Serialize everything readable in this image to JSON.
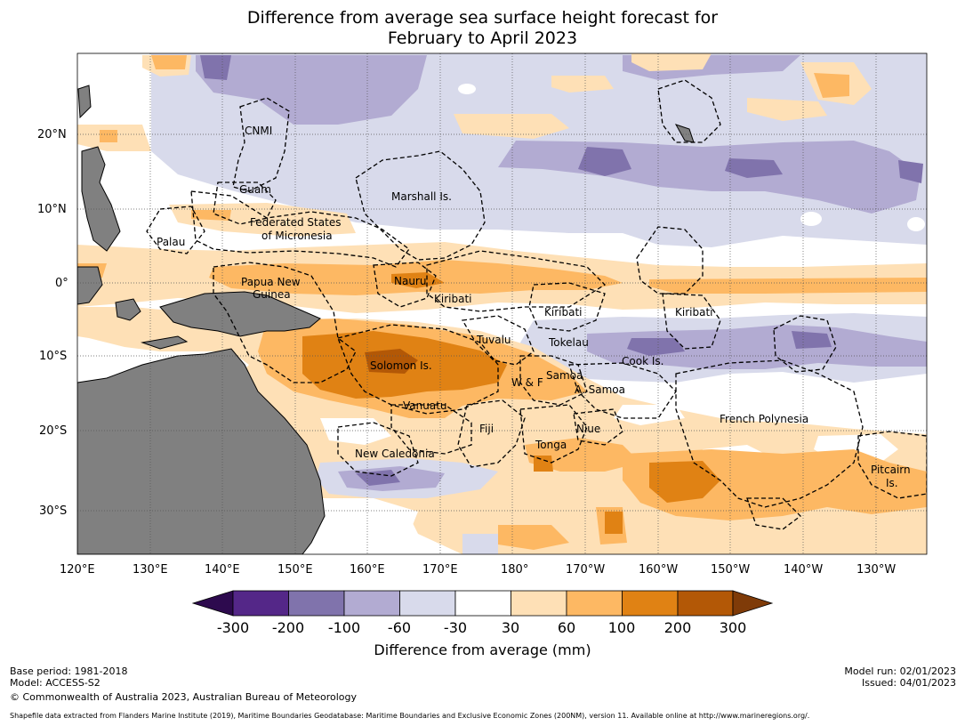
{
  "title": {
    "line1": "Difference from average sea surface height forecast for",
    "line2": "February to April 2023"
  },
  "map": {
    "latitude_labels": [
      "20°N",
      "10°N",
      "0°",
      "10°S",
      "20°S",
      "30°S"
    ],
    "longitude_labels": [
      "120°E",
      "130°E",
      "140°E",
      "150°E",
      "160°E",
      "170°E",
      "180°",
      "170°W",
      "160°W",
      "150°W",
      "140°W",
      "130°W"
    ],
    "regions": {
      "cnmi": "CNMI",
      "guam": "Guam",
      "marshall": "Marshall Is.",
      "fsm1": "Federated States",
      "fsm2": "of Micronesia",
      "palau": "Palau",
      "png1": "Papua New",
      "png2": "Guinea",
      "nauru": "Nauru",
      "kiribati_w": "Kiribati",
      "kiribati_c": "Kiribati",
      "kiribati_e": "Kiribati",
      "tuvalu": "Tuvalu",
      "tokelau": "Tokelau",
      "cook": "Cook Is.",
      "solomon": "Solomon Is.",
      "samoa": "Samoa",
      "wf": "W & F",
      "asamoa": "A. Samoa",
      "vanuatu": "Vanuatu",
      "fiji": "Fiji",
      "niue": "Niue",
      "tonga": "Tonga",
      "newcal": "New Caledonia",
      "fpoly": "French Polynesia",
      "pitcairn1": "Pitcairn",
      "pitcairn2": "Is."
    }
  },
  "colorbar": {
    "label": "Difference from average (mm)",
    "ticks": [
      "-300",
      "-200",
      "-100",
      "-60",
      "-30",
      "30",
      "60",
      "100",
      "200",
      "300"
    ],
    "colors": {
      "below": "#2d0a4e",
      "c1": "#542788",
      "c2": "#8073ac",
      "c3": "#b2abd2",
      "c4": "#d8daeb",
      "c5": "#ffffff",
      "c6": "#fee0b6",
      "c7": "#fdb863",
      "c8": "#e08214",
      "c9": "#b35806",
      "above": "#7f3b08"
    }
  },
  "footer": {
    "base_period": "Base period: 1981-2018",
    "model": "Model: ACCESS-S2",
    "copyright": "© Commonwealth of Australia 2023, Australian Bureau of Meteorology",
    "model_run": "Model run: 02/01/2023",
    "issued": "Issued: 04/01/2023",
    "shapefile": "Shapefile data extracted from Flanders Marine Institute (2019), Maritime Boundaries Geodatabase: Maritime Boundaries and Exclusive Economic Zones (200NM), version 11. Available online at http://www.marineregions.org/."
  }
}
